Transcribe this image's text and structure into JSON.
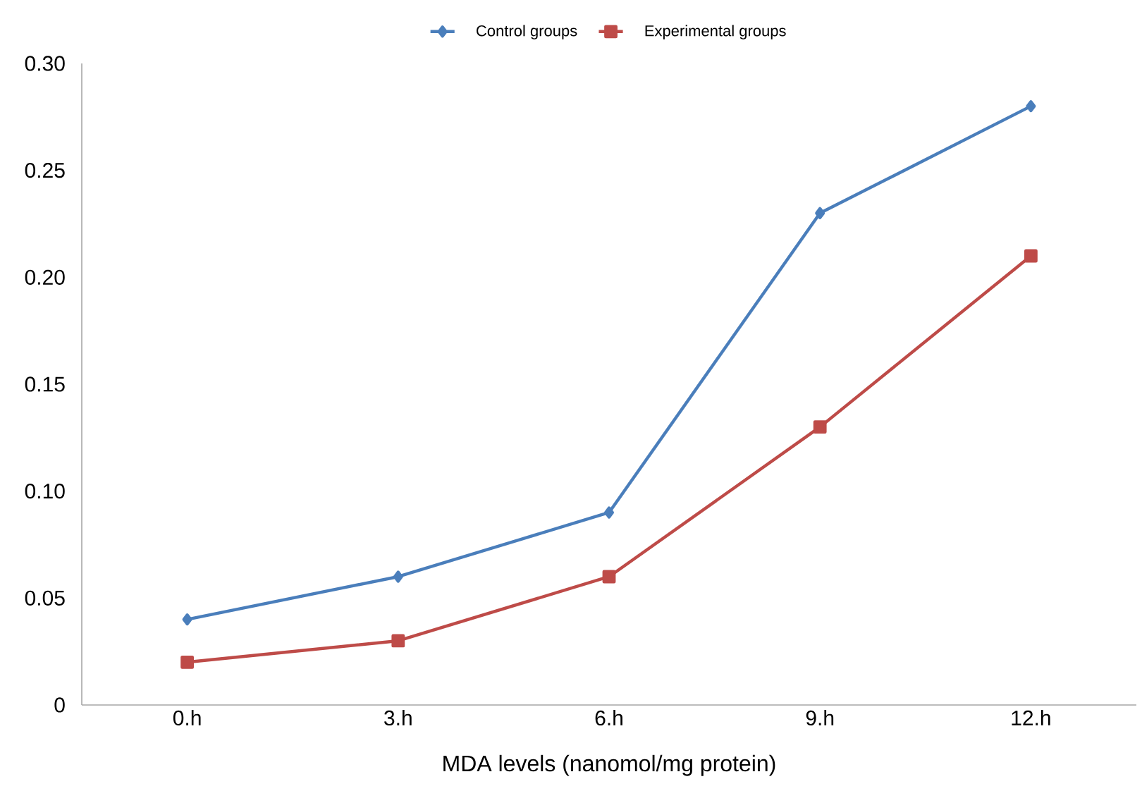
{
  "chart_data": {
    "type": "line",
    "xlabel": "MDA  levels (nanomol/mg protein)",
    "categories": [
      "0.h",
      "3.h",
      "6.h",
      "9.h",
      "12.h"
    ],
    "series": [
      {
        "name": "Control groups",
        "color": "#4a7ebb",
        "marker": "diamond",
        "values": [
          0.04,
          0.06,
          0.09,
          0.23,
          0.28
        ]
      },
      {
        "name": "Experimental groups",
        "color": "#be4b48",
        "marker": "square",
        "values": [
          0.02,
          0.03,
          0.06,
          0.13,
          0.21
        ]
      }
    ],
    "ylim": [
      0,
      0.3
    ],
    "yticks": [
      0,
      0.05,
      {
        "value": 0.1,
        "label": "0.10"
      },
      0.15,
      {
        "value": 0.2,
        "label": "0.20"
      },
      0.25,
      {
        "value": 0.3,
        "label": "0.30"
      }
    ],
    "legend": "top",
    "line_style": "solid"
  }
}
